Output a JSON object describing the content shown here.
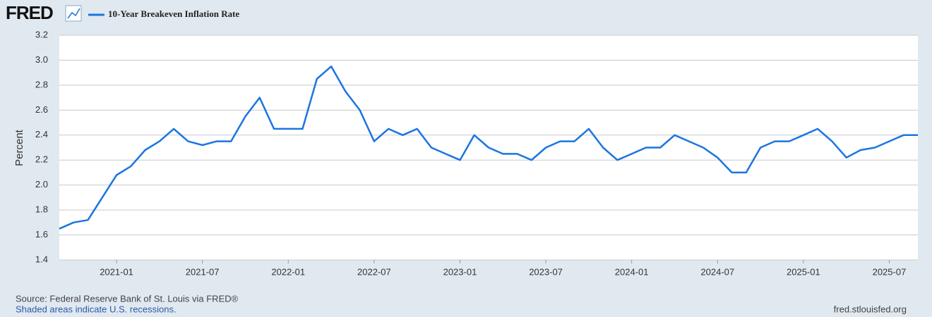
{
  "chart_data": {
    "type": "line",
    "logo": "FRED",
    "y_label": "Percent",
    "source": "Source: Federal Reserve Bank of St. Louis via FRED®",
    "note": "Shaded areas indicate U.S. recessions.",
    "site": "fred.stlouisfed.org",
    "x": [
      "2020-09",
      "2020-10",
      "2020-11",
      "2020-12",
      "2021-01",
      "2021-02",
      "2021-03",
      "2021-04",
      "2021-05",
      "2021-06",
      "2021-07",
      "2021-08",
      "2021-09",
      "2021-10",
      "2021-11",
      "2021-12",
      "2022-01",
      "2022-02",
      "2022-03",
      "2022-04",
      "2022-05",
      "2022-06",
      "2022-07",
      "2022-08",
      "2022-09",
      "2022-10",
      "2022-11",
      "2022-12",
      "2023-01",
      "2023-02",
      "2023-03",
      "2023-04",
      "2023-05",
      "2023-06",
      "2023-07",
      "2023-08",
      "2023-09",
      "2023-10",
      "2023-11",
      "2023-12",
      "2024-01",
      "2024-02",
      "2024-03",
      "2024-04",
      "2024-05",
      "2024-06",
      "2024-07",
      "2024-08",
      "2024-09",
      "2024-10",
      "2024-11",
      "2024-12",
      "2025-01",
      "2025-02",
      "2025-03",
      "2025-04",
      "2025-05",
      "2025-06",
      "2025-07",
      "2025-08",
      "2025-09"
    ],
    "series": [
      {
        "name": "10-Year Breakeven Inflation Rate",
        "color": "#1b75e0",
        "values": [
          1.65,
          1.7,
          1.72,
          1.9,
          2.08,
          2.15,
          2.28,
          2.35,
          2.45,
          2.35,
          2.32,
          2.35,
          2.35,
          2.55,
          2.7,
          2.45,
          2.45,
          2.45,
          2.85,
          2.95,
          2.75,
          2.6,
          2.35,
          2.45,
          2.4,
          2.45,
          2.3,
          2.25,
          2.2,
          2.4,
          2.3,
          2.25,
          2.25,
          2.2,
          2.3,
          2.35,
          2.35,
          2.45,
          2.3,
          2.2,
          2.25,
          2.3,
          2.3,
          2.4,
          2.35,
          2.3,
          2.22,
          2.1,
          2.1,
          2.3,
          2.35,
          2.35,
          2.4,
          2.45,
          2.35,
          2.22,
          2.28,
          2.3,
          2.35,
          2.4,
          2.4
        ]
      }
    ],
    "xlim": [
      "2020-09",
      "2025-09"
    ],
    "xticks": [
      "2021-01",
      "2021-07",
      "2022-01",
      "2022-07",
      "2023-01",
      "2023-07",
      "2024-01",
      "2024-07",
      "2025-01",
      "2025-07"
    ],
    "ylim": [
      1.4,
      3.2
    ],
    "yticks": [
      1.4,
      1.6,
      1.8,
      {
        "value": 2,
        "label": "2.0"
      },
      2.2,
      2.4,
      2.6,
      2.8,
      {
        "value": 3,
        "label": "3.0"
      },
      3.2
    ],
    "grid": true
  }
}
